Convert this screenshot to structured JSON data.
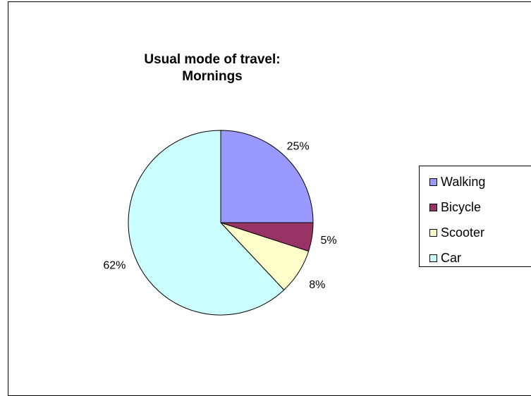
{
  "chart_data": {
    "type": "pie",
    "title_lines": [
      "Usual mode of travel:",
      "Mornings"
    ],
    "slices": [
      {
        "name": "Walking",
        "value": 25,
        "label": "25%",
        "color": "#9999FF"
      },
      {
        "name": "Bicycle",
        "value": 5,
        "label": "5%",
        "color": "#993366"
      },
      {
        "name": "Scooter",
        "value": 8,
        "label": "8%",
        "color": "#FFFFCC"
      },
      {
        "name": "Car",
        "value": 62,
        "label": "62%",
        "color": "#CCFFFF"
      }
    ],
    "legend_position": "right",
    "start": "12 o'clock",
    "direction": "clockwise"
  }
}
